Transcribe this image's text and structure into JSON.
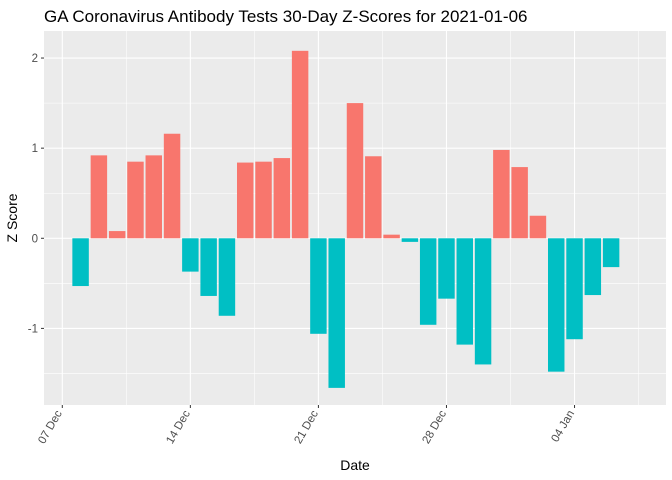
{
  "chart_data": {
    "type": "bar",
    "title": "GA Coronavirus Antibody Tests 30-Day Z-Scores for 2021-01-06",
    "xlabel": "Date",
    "ylabel": "Z Score",
    "x_axis": "date",
    "xlim": [
      "2020-12-06",
      "2021-01-09"
    ],
    "ylim": [
      -1.85,
      2.3
    ],
    "x_ticks": [
      {
        "date": "2020-12-07",
        "label": "07 Dec"
      },
      {
        "date": "2020-12-14",
        "label": "14 Dec"
      },
      {
        "date": "2020-12-21",
        "label": "21 Dec"
      },
      {
        "date": "2020-12-28",
        "label": "28 Dec"
      },
      {
        "date": "2021-01-04",
        "label": "04 Jan"
      }
    ],
    "y_ticks": [
      -1,
      0,
      1,
      2
    ],
    "grid": true,
    "legend": "none",
    "colors": {
      "positive": "#F8766D",
      "negative": "#00BFC4",
      "panel": "#EBEBEB",
      "grid": "#FFFFFF"
    },
    "dates": [
      "2020-12-08",
      "2020-12-09",
      "2020-12-10",
      "2020-12-11",
      "2020-12-12",
      "2020-12-13",
      "2020-12-14",
      "2020-12-15",
      "2020-12-16",
      "2020-12-17",
      "2020-12-18",
      "2020-12-19",
      "2020-12-20",
      "2020-12-21",
      "2020-12-22",
      "2020-12-23",
      "2020-12-24",
      "2020-12-25",
      "2020-12-26",
      "2020-12-27",
      "2020-12-28",
      "2020-12-29",
      "2020-12-30",
      "2020-12-31",
      "2021-01-01",
      "2021-01-02",
      "2021-01-03",
      "2021-01-04",
      "2021-01-05",
      "2021-01-06"
    ],
    "values": [
      -0.53,
      0.92,
      0.08,
      0.85,
      0.92,
      1.16,
      -0.37,
      -0.64,
      -0.86,
      0.84,
      0.85,
      0.89,
      2.08,
      -1.06,
      -1.66,
      1.5,
      0.91,
      0.04,
      -0.04,
      -0.96,
      -0.67,
      -1.18,
      -1.4,
      0.98,
      0.79,
      0.25,
      -1.48,
      -1.12,
      -0.63,
      -0.32
    ]
  }
}
